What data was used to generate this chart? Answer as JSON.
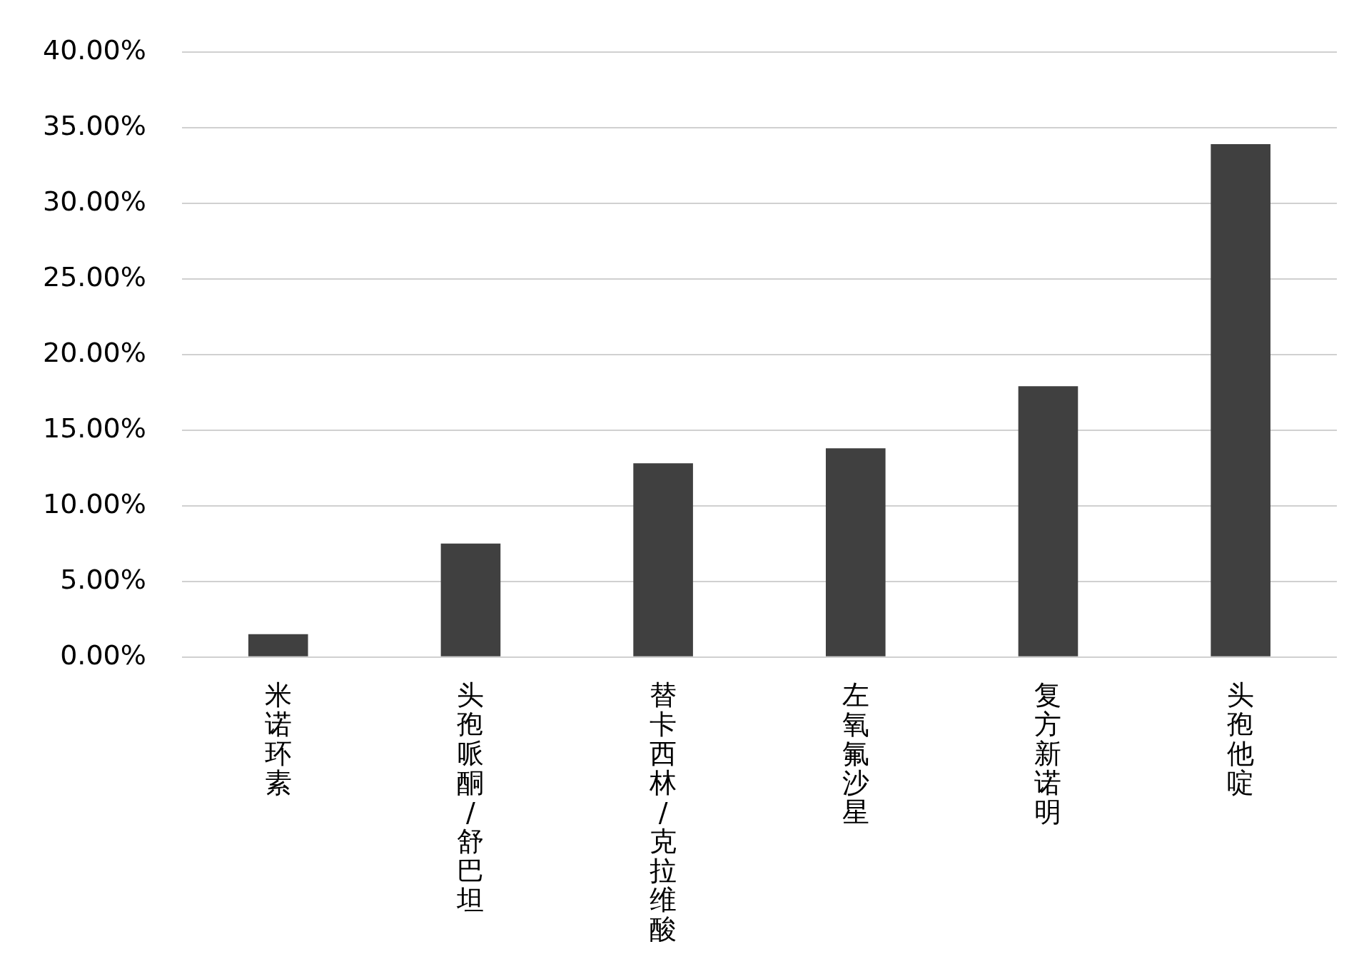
{
  "chart_data": {
    "type": "bar",
    "categories": [
      "米诺环素",
      "头孢哌酮/舒巴坦",
      "替卡西林/克拉维酸",
      "左氧氟沙星",
      "复方新诺明",
      "头孢他啶"
    ],
    "values": [
      1.5,
      7.5,
      12.8,
      13.8,
      17.9,
      33.9
    ],
    "color": "#404040",
    "ylim": [
      0,
      40
    ],
    "yticks": [
      {
        "value": 0,
        "label": "0.00%"
      },
      {
        "value": 5,
        "label": "5.00%"
      },
      {
        "value": 10,
        "label": "10.00%"
      },
      {
        "value": 15,
        "label": "15.00%"
      },
      {
        "value": 20,
        "label": "20.00%"
      },
      {
        "value": 25,
        "label": "25.00%"
      },
      {
        "value": 30,
        "label": "30.00%"
      },
      {
        "value": 35,
        "label": "35.00%"
      },
      {
        "value": 40,
        "label": "40.00%"
      }
    ],
    "grid": "y",
    "legend": false
  }
}
